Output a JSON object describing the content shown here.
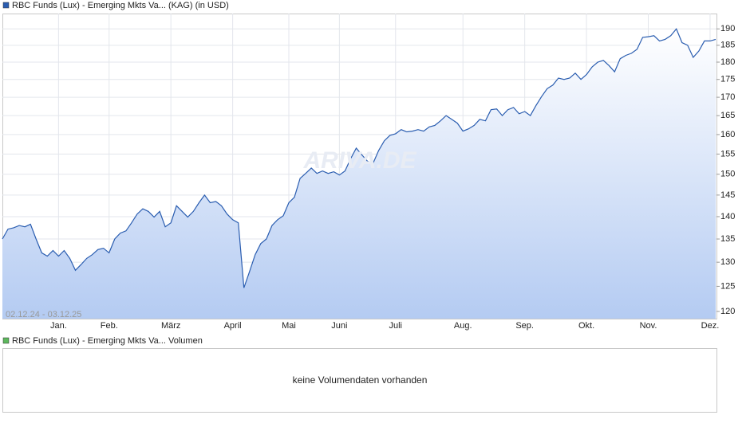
{
  "chart_data": {
    "type": "line",
    "series": [
      {
        "name": "RBC Funds (Lux) - Emerging Mkts Va... (KAG) (in USD)",
        "color": "#2a5db0",
        "values": [
          135,
          137.2,
          137.5,
          138,
          137.7,
          138.3,
          135,
          132,
          131.3,
          132.5,
          131.3,
          132.5,
          130.8,
          128.3,
          129.5,
          130.8,
          131.6,
          132.7,
          133,
          132,
          135,
          136.3,
          136.8,
          138.6,
          140.6,
          141.8,
          141.2,
          139.9,
          141.2,
          137.7,
          138.6,
          142.5,
          141.2,
          139.9,
          141.2,
          143.2,
          145,
          143.2,
          143.5,
          142.5,
          140.6,
          139.3,
          138.6,
          124.7,
          128,
          131.6,
          134,
          135,
          138,
          139.3,
          140.2,
          143.2,
          144.5,
          149,
          150.2,
          151.5,
          150.2,
          150.8,
          150.2,
          150.6,
          149.8,
          150.8,
          153.8,
          156.5,
          154.8,
          153.2,
          152.7,
          155.9,
          158.4,
          159.8,
          160.2,
          161.3,
          160.7,
          160.9,
          161.3,
          160.9,
          162,
          162.4,
          163.6,
          165,
          164,
          163,
          160.9,
          161.5,
          162.4,
          164,
          163.6,
          166.6,
          166.8,
          165,
          166.6,
          167.2,
          165.5,
          166.1,
          165,
          167.7,
          170.2,
          172.4,
          173.4,
          175.4,
          175,
          175.4,
          176.8,
          175,
          176.4,
          178.6,
          180,
          180.5,
          179,
          177.2,
          181,
          182,
          182.6,
          183.8,
          187.4,
          187.6,
          187.9,
          186.3,
          186.8,
          187.9,
          190,
          185.8,
          185,
          181.4,
          183.3,
          186.3,
          186.3,
          186.8
        ]
      }
    ],
    "categories": [
      null,
      null,
      null,
      null,
      null,
      null,
      null,
      null,
      null,
      null,
      "Jan.",
      null,
      null,
      null,
      null,
      null,
      null,
      null,
      null,
      "Feb.",
      null,
      null,
      null,
      null,
      null,
      null,
      null,
      null,
      null,
      null,
      "März",
      null,
      null,
      null,
      null,
      null,
      null,
      null,
      null,
      null,
      null,
      "April",
      null,
      null,
      null,
      null,
      null,
      null,
      null,
      null,
      null,
      "Mai",
      null,
      null,
      null,
      null,
      null,
      null,
      null,
      null,
      "Juni",
      null,
      null,
      null,
      null,
      null,
      null,
      null,
      null,
      null,
      "Juli",
      null,
      null,
      null,
      null,
      null,
      null,
      null,
      null,
      null,
      null,
      null,
      "Aug.",
      null,
      null,
      null,
      null,
      null,
      null,
      null,
      null,
      null,
      null,
      "Sep.",
      null,
      null,
      null,
      null,
      null,
      null,
      null,
      null,
      null,
      null,
      "Okt.",
      null,
      null,
      null,
      null,
      null,
      null,
      null,
      null,
      null,
      null,
      "Nov.",
      null,
      null,
      null,
      null,
      null,
      null,
      null,
      null,
      null,
      null,
      "Dez.",
      null
    ],
    "ylim": [
      118.6,
      194.8
    ],
    "log_y": true,
    "yticks": [
      120,
      125,
      130,
      135,
      140,
      145,
      150,
      155,
      160,
      165,
      170,
      175,
      180,
      185,
      190
    ],
    "grid": true,
    "date_range": "02.12.24 - 03.12.25",
    "watermark": "ARIVA.DE"
  },
  "volume_panel": {
    "legend": "RBC Funds (Lux) - Emerging Mkts Va... Volumen",
    "legend_color": "#5cb85c",
    "message": "keine Volumendaten vorhanden"
  }
}
